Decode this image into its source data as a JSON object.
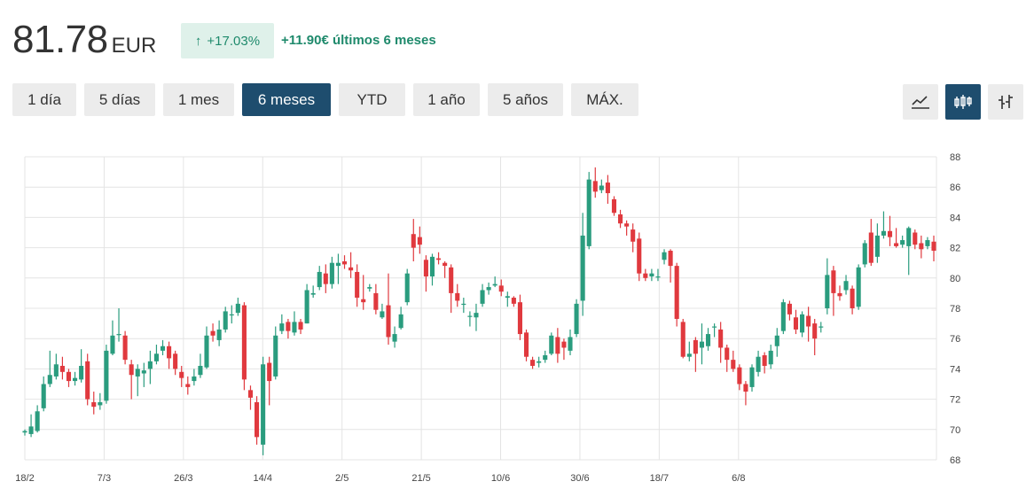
{
  "header": {
    "price": "81.78",
    "currency": "EUR",
    "change_pct": "+17.03%",
    "change_abs": "+11.90€ últimos 6 meses",
    "up_arrow": "↑"
  },
  "ranges": [
    {
      "label": "1 día",
      "active": false
    },
    {
      "label": "5 días",
      "active": false
    },
    {
      "label": "1 mes",
      "active": false
    },
    {
      "label": "6 meses",
      "active": true
    },
    {
      "label": "YTD",
      "active": false
    },
    {
      "label": "1 año",
      "active": false
    },
    {
      "label": "5 años",
      "active": false
    },
    {
      "label": "MÁX.",
      "active": false
    }
  ],
  "chart_types": [
    {
      "icon": "line-chart-icon",
      "active": false
    },
    {
      "icon": "candlestick-icon",
      "active": true
    },
    {
      "icon": "ohlc-bars-icon",
      "active": false
    }
  ],
  "colors": {
    "up": "#2a9c7e",
    "down": "#e0393e",
    "active": "#1e4d6e",
    "badge_bg": "#dff1ea",
    "badge_text": "#1f8a6c"
  },
  "chart_data": {
    "type": "candlestick",
    "title": "",
    "xlabel": "",
    "ylabel": "",
    "ylim": [
      68,
      88
    ],
    "yticks": [
      68,
      70,
      72,
      74,
      76,
      78,
      80,
      82,
      84,
      86,
      88
    ],
    "xticks": [
      "18/2",
      "7/3",
      "26/3",
      "14/4",
      "2/5",
      "21/5",
      "10/6",
      "30/6",
      "18/7",
      "6/8"
    ],
    "grid": true,
    "y_axis_position": "right",
    "candles": [
      [
        69.8,
        69.9,
        69.6,
        70.0
      ],
      [
        69.7,
        70.2,
        69.5,
        71.0
      ],
      [
        69.9,
        71.2,
        69.8,
        71.6
      ],
      [
        71.4,
        73.0,
        71.2,
        73.5
      ],
      [
        73.0,
        73.6,
        72.8,
        75.2
      ],
      [
        73.5,
        74.3,
        73.3,
        75.0
      ],
      [
        74.2,
        73.8,
        73.3,
        74.8
      ],
      [
        73.8,
        73.2,
        72.8,
        74.0
      ],
      [
        73.2,
        73.4,
        72.9,
        73.8
      ],
      [
        73.3,
        74.2,
        73.1,
        75.3
      ],
      [
        74.5,
        72.0,
        71.6,
        75.0
      ],
      [
        71.8,
        71.5,
        71.0,
        72.5
      ],
      [
        71.6,
        71.8,
        71.3,
        72.4
      ],
      [
        71.9,
        75.2,
        71.7,
        75.6
      ],
      [
        75.0,
        76.2,
        74.9,
        77.2
      ],
      [
        76.3,
        76.3,
        75.8,
        78.0
      ],
      [
        76.2,
        74.6,
        74.3,
        76.5
      ],
      [
        74.3,
        73.6,
        72.0,
        74.6
      ],
      [
        73.5,
        74.0,
        72.2,
        74.3
      ],
      [
        73.7,
        73.9,
        72.8,
        74.4
      ],
      [
        74.0,
        74.5,
        73.0,
        75.2
      ],
      [
        74.5,
        75.0,
        74.3,
        75.6
      ],
      [
        75.2,
        75.5,
        74.9,
        75.9
      ],
      [
        75.5,
        74.7,
        74.0,
        75.8
      ],
      [
        75.0,
        74.0,
        73.6,
        75.2
      ],
      [
        73.8,
        73.4,
        72.8,
        74.2
      ],
      [
        73.0,
        72.8,
        72.3,
        73.5
      ],
      [
        73.2,
        73.5,
        72.9,
        74.0
      ],
      [
        73.6,
        74.2,
        73.4,
        75.0
      ],
      [
        74.1,
        76.2,
        74.0,
        76.8
      ],
      [
        76.5,
        76.2,
        75.8,
        77.0
      ],
      [
        75.9,
        76.6,
        75.5,
        77.2
      ],
      [
        76.6,
        77.8,
        76.4,
        78.1
      ],
      [
        77.6,
        77.6,
        77.0,
        78.2
      ],
      [
        77.7,
        78.3,
        77.5,
        78.7
      ],
      [
        78.2,
        73.3,
        72.6,
        78.4
      ],
      [
        72.6,
        72.1,
        71.3,
        72.9
      ],
      [
        71.8,
        69.5,
        69.0,
        72.2
      ],
      [
        69.0,
        74.3,
        68.3,
        74.8
      ],
      [
        74.4,
        73.2,
        71.6,
        74.8
      ],
      [
        73.5,
        76.2,
        73.3,
        76.8
      ],
      [
        76.5,
        77.0,
        76.3,
        77.6
      ],
      [
        77.1,
        76.5,
        76.0,
        77.3
      ],
      [
        76.4,
        77.1,
        76.2,
        77.8
      ],
      [
        77.1,
        76.6,
        76.3,
        77.3
      ],
      [
        77.0,
        79.2,
        77.0,
        79.6
      ],
      [
        78.9,
        79.0,
        78.7,
        79.5
      ],
      [
        79.4,
        80.4,
        79.2,
        80.8
      ],
      [
        80.3,
        79.6,
        79.0,
        80.9
      ],
      [
        79.6,
        81.0,
        79.3,
        81.4
      ],
      [
        80.8,
        81.0,
        79.6,
        81.6
      ],
      [
        81.1,
        80.9,
        80.6,
        81.5
      ],
      [
        80.7,
        80.5,
        80.0,
        81.7
      ],
      [
        80.4,
        78.7,
        78.1,
        80.9
      ],
      [
        78.6,
        78.4,
        77.9,
        80.2
      ],
      [
        79.3,
        79.4,
        79.1,
        79.6
      ],
      [
        79.0,
        77.9,
        77.6,
        79.6
      ],
      [
        77.4,
        77.8,
        77.3,
        78.3
      ],
      [
        78.2,
        76.1,
        75.6,
        80.3
      ],
      [
        75.8,
        76.3,
        75.4,
        76.8
      ],
      [
        76.7,
        77.6,
        76.6,
        78.1
      ],
      [
        78.4,
        80.3,
        78.2,
        80.6
      ],
      [
        82.9,
        82.0,
        81.1,
        83.9
      ],
      [
        82.7,
        82.2,
        81.6,
        83.4
      ],
      [
        81.2,
        80.1,
        79.1,
        81.5
      ],
      [
        80.1,
        81.4,
        79.5,
        81.6
      ],
      [
        81.3,
        81.2,
        80.9,
        81.7
      ],
      [
        81.0,
        80.8,
        80.0,
        81.1
      ],
      [
        80.7,
        79.0,
        77.7,
        80.9
      ],
      [
        79.0,
        78.5,
        78.1,
        79.6
      ],
      [
        78.3,
        78.3,
        77.7,
        78.7
      ],
      [
        77.5,
        77.5,
        76.8,
        77.8
      ],
      [
        77.4,
        77.7,
        76.5,
        78.3
      ],
      [
        78.3,
        79.2,
        78.1,
        79.6
      ],
      [
        79.2,
        79.4,
        78.9,
        79.7
      ],
      [
        79.5,
        79.6,
        79.4,
        80.1
      ],
      [
        79.5,
        79.1,
        78.8,
        79.9
      ],
      [
        78.7,
        78.8,
        78.1,
        79.1
      ],
      [
        78.7,
        78.3,
        78.1,
        78.8
      ],
      [
        78.4,
        76.3,
        75.9,
        78.9
      ],
      [
        76.4,
        74.8,
        74.5,
        76.6
      ],
      [
        74.6,
        74.2,
        74.0,
        74.8
      ],
      [
        74.4,
        74.5,
        74.1,
        74.8
      ],
      [
        74.6,
        74.9,
        74.4,
        75.2
      ],
      [
        75.0,
        76.2,
        74.9,
        76.4
      ],
      [
        76.1,
        75.0,
        74.4,
        76.7
      ],
      [
        75.8,
        75.4,
        74.6,
        76.0
      ],
      [
        75.2,
        76.1,
        74.9,
        76.6
      ],
      [
        76.3,
        78.3,
        76.1,
        78.6
      ],
      [
        78.5,
        82.8,
        77.5,
        84.3
      ],
      [
        82.1,
        86.5,
        81.9,
        87.0
      ],
      [
        86.4,
        85.7,
        85.3,
        87.3
      ],
      [
        85.8,
        86.1,
        85.6,
        86.5
      ],
      [
        86.3,
        85.6,
        84.9,
        86.8
      ],
      [
        85.2,
        84.3,
        84.1,
        85.4
      ],
      [
        84.2,
        83.6,
        83.3,
        84.5
      ],
      [
        83.6,
        83.4,
        82.8,
        83.8
      ],
      [
        83.2,
        82.4,
        81.7,
        83.6
      ],
      [
        82.6,
        80.3,
        79.8,
        83.0
      ],
      [
        80.3,
        80.0,
        79.8,
        80.6
      ],
      [
        80.1,
        80.3,
        79.8,
        80.6
      ],
      [
        80.1,
        80.1,
        79.8,
        80.6
      ],
      [
        81.2,
        81.7,
        80.9,
        81.9
      ],
      [
        81.8,
        80.8,
        79.7,
        81.9
      ],
      [
        80.8,
        77.3,
        76.8,
        81.0
      ],
      [
        77.1,
        74.8,
        74.7,
        77.3
      ],
      [
        74.8,
        75.0,
        74.5,
        75.8
      ],
      [
        75.9,
        75.0,
        73.8,
        76.1
      ],
      [
        75.4,
        75.8,
        74.3,
        77.0
      ],
      [
        75.5,
        76.3,
        75.2,
        76.7
      ],
      [
        76.8,
        76.8,
        76.1,
        77.0
      ],
      [
        76.6,
        75.4,
        74.4,
        77.1
      ],
      [
        75.4,
        74.6,
        73.8,
        75.6
      ],
      [
        74.6,
        74.0,
        73.8,
        75.2
      ],
      [
        74.1,
        73.0,
        72.6,
        74.3
      ],
      [
        73.0,
        72.5,
        71.6,
        73.2
      ],
      [
        72.8,
        74.1,
        72.5,
        74.3
      ],
      [
        73.8,
        74.8,
        73.5,
        75.2
      ],
      [
        74.9,
        74.2,
        73.7,
        75.1
      ],
      [
        74.3,
        75.2,
        74.0,
        75.6
      ],
      [
        75.5,
        76.2,
        74.8,
        76.7
      ],
      [
        76.5,
        78.4,
        76.3,
        78.6
      ],
      [
        78.3,
        77.6,
        77.2,
        78.5
      ],
      [
        77.4,
        76.6,
        76.3,
        77.9
      ],
      [
        76.4,
        77.6,
        76.1,
        77.8
      ],
      [
        77.5,
        76.8,
        75.8,
        78.1
      ],
      [
        77.0,
        76.0,
        74.9,
        77.3
      ],
      [
        76.8,
        76.8,
        76.4,
        77.1
      ],
      [
        78.0,
        80.2,
        77.6,
        81.3
      ],
      [
        80.5,
        79.0,
        77.5,
        80.8
      ],
      [
        79.0,
        78.8,
        78.5,
        79.5
      ],
      [
        79.2,
        79.8,
        78.9,
        80.2
      ],
      [
        79.3,
        78.0,
        77.6,
        79.5
      ],
      [
        78.1,
        80.7,
        77.9,
        80.9
      ],
      [
        80.9,
        82.3,
        80.7,
        82.5
      ],
      [
        83.0,
        81.0,
        80.8,
        83.9
      ],
      [
        81.4,
        82.8,
        81.0,
        83.6
      ],
      [
        82.8,
        83.1,
        82.6,
        84.4
      ],
      [
        83.1,
        82.7,
        82.1,
        84.1
      ],
      [
        82.3,
        82.1,
        82.0,
        83.3
      ],
      [
        82.2,
        82.5,
        82.0,
        82.8
      ],
      [
        82.1,
        83.3,
        80.2,
        83.4
      ],
      [
        83.0,
        82.2,
        81.9,
        83.2
      ],
      [
        82.3,
        81.9,
        81.3,
        82.8
      ],
      [
        82.1,
        82.5,
        81.9,
        82.7
      ],
      [
        82.4,
        81.8,
        81.1,
        82.8
      ]
    ]
  }
}
